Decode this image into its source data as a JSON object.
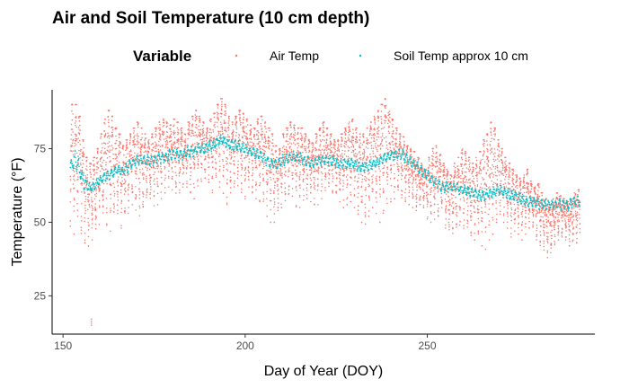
{
  "chart_data": {
    "type": "scatter",
    "title": "Air and Soil Temperature (10 cm depth)",
    "xlabel": "Day of Year (DOY)",
    "ylabel": "Temperature (°F)",
    "xlim": [
      147,
      296
    ],
    "ylim": [
      12,
      95
    ],
    "x_ticks": [
      150,
      200,
      250
    ],
    "y_ticks": [
      25,
      50,
      75
    ],
    "grid": false,
    "legend": {
      "title": "Variable",
      "position": "top",
      "entries": [
        "Air Temp",
        "Soil Temp approx 10 cm"
      ]
    },
    "series": [
      {
        "name": "Air Temp",
        "color": "#F8766D",
        "daily_min": [
          48,
          46,
          52,
          45,
          43,
          41,
          44,
          46,
          50,
          52,
          49,
          47,
          50,
          53,
          48,
          50,
          55,
          56,
          54,
          52,
          55,
          57,
          58,
          55,
          56,
          58,
          60,
          62,
          61,
          58,
          60,
          63,
          62,
          60,
          58,
          62,
          64,
          65,
          63,
          60,
          64,
          62,
          58,
          56,
          60,
          62,
          61,
          59,
          58,
          62,
          60,
          58,
          57,
          55,
          52,
          50,
          50,
          54,
          55,
          57,
          58,
          56,
          55,
          55,
          57,
          58,
          57,
          56,
          56,
          58,
          60,
          62,
          60,
          58,
          57,
          55,
          56,
          57,
          55,
          52,
          50,
          48,
          52,
          55,
          53,
          50,
          54,
          56,
          57,
          58,
          59,
          58,
          57,
          56,
          55,
          54,
          56,
          55,
          50,
          48,
          50,
          52,
          55,
          48,
          46,
          45,
          47,
          50,
          48,
          46,
          45,
          44,
          43,
          42,
          40,
          44,
          46,
          50,
          52,
          50,
          48,
          45,
          47,
          46,
          44,
          46,
          48,
          47,
          44,
          42,
          40,
          38,
          40,
          42,
          44,
          45,
          44,
          42,
          44,
          43
        ],
        "daily_max": [
          90,
          90,
          86,
          78,
          72,
          70,
          72,
          75,
          80,
          85,
          88,
          86,
          82,
          80,
          76,
          78,
          80,
          82,
          84,
          82,
          80,
          78,
          80,
          82,
          84,
          85,
          84,
          83,
          85,
          84,
          82,
          80,
          84,
          86,
          88,
          86,
          84,
          82,
          85,
          87,
          90,
          92,
          90,
          86,
          84,
          86,
          88,
          87,
          85,
          83,
          82,
          85,
          86,
          84,
          82,
          80,
          76,
          75,
          80,
          82,
          84,
          83,
          82,
          82,
          80,
          78,
          77,
          80,
          82,
          84,
          82,
          80,
          78,
          78,
          80,
          82,
          84,
          85,
          82,
          80,
          80,
          82,
          84,
          86,
          88,
          90,
          92,
          88,
          85,
          82,
          80,
          79,
          76,
          75,
          74,
          72,
          70,
          68,
          72,
          75,
          76,
          73,
          70,
          68,
          66,
          70,
          72,
          75,
          74,
          72,
          70,
          72,
          74,
          78,
          80,
          84,
          82,
          78,
          75,
          72,
          70,
          68,
          66,
          65,
          66,
          68,
          64,
          62,
          63,
          60,
          58,
          56,
          58,
          60,
          59,
          58,
          57,
          58,
          60,
          61
        ],
        "outlier_min": {
          "x": 157.8,
          "y": 15
        }
      },
      {
        "name": "Soil Temp approx 10 cm",
        "color": "#00BFC4",
        "daily_mean": [
          68,
          71,
          70,
          66,
          63,
          62,
          62,
          63,
          64,
          65,
          66,
          66,
          67,
          68,
          67,
          68,
          69,
          70,
          71,
          71,
          71,
          71,
          71,
          71,
          72,
          72,
          72,
          73,
          73,
          73,
          73,
          73,
          74,
          74,
          74,
          75,
          75,
          75,
          76,
          76,
          77,
          78,
          78,
          77,
          76,
          76,
          76,
          75,
          75,
          74,
          74,
          73,
          73,
          72,
          71,
          70,
          70,
          70,
          71,
          71,
          72,
          72,
          72,
          72,
          71,
          71,
          70,
          70,
          71,
          71,
          71,
          71,
          71,
          70,
          70,
          70,
          70,
          70,
          70,
          69,
          69,
          69,
          69,
          70,
          70,
          71,
          72,
          72,
          73,
          73,
          73,
          73,
          72,
          71,
          70,
          69,
          68,
          67,
          66,
          65,
          64,
          63,
          62,
          62,
          62,
          62,
          62,
          61,
          61,
          61,
          60,
          60,
          59,
          59,
          59,
          60,
          60,
          61,
          61,
          60,
          60,
          59,
          59,
          58,
          58,
          57,
          57,
          57,
          57,
          56,
          56,
          56,
          56,
          56,
          56,
          56,
          56,
          56,
          57,
          57
        ],
        "daily_range": [
          6,
          8,
          7,
          6,
          5,
          4,
          4,
          4,
          4,
          4,
          4,
          4,
          4,
          4,
          4,
          4,
          4,
          4,
          4,
          4,
          4,
          4,
          4,
          4,
          4,
          4,
          4,
          4,
          4,
          4,
          4,
          4,
          4,
          4,
          4,
          4,
          4,
          4,
          4,
          4,
          4,
          4,
          4,
          4,
          4,
          4,
          4,
          4,
          4,
          4,
          4,
          4,
          4,
          4,
          4,
          4,
          4,
          4,
          4,
          4,
          4,
          4,
          4,
          4,
          4,
          4,
          4,
          4,
          4,
          4,
          4,
          4,
          4,
          4,
          4,
          4,
          4,
          4,
          4,
          4,
          4,
          4,
          4,
          4,
          4,
          4,
          4,
          4,
          4,
          4,
          4,
          4,
          4,
          4,
          4,
          4,
          4,
          4,
          4,
          4,
          4,
          4,
          4,
          4,
          4,
          4,
          4,
          4,
          4,
          4,
          4,
          4,
          4,
          4,
          4,
          4,
          4,
          4,
          4,
          4,
          4,
          4,
          4,
          4,
          4,
          4,
          4,
          4,
          4,
          4,
          4,
          4,
          4,
          4,
          4,
          4,
          4,
          4,
          4,
          4
        ]
      }
    ],
    "day_start": 152
  }
}
